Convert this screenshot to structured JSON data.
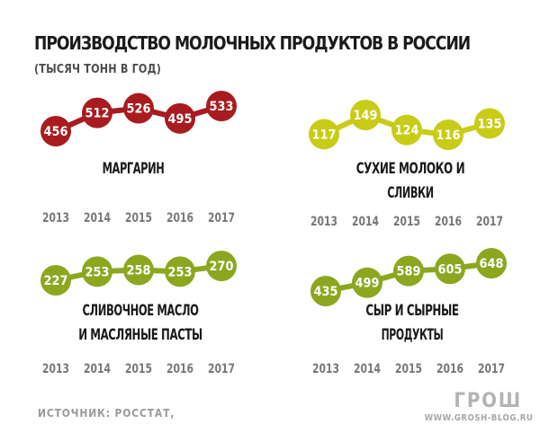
{
  "title": "ПРОИЗВОДСТВО МОЛОЧНЫХ ПРОДУКТОВ В РОССИИ",
  "subtitle": "(ТЫСЯЧ ТОНН В ГОД)",
  "source": "ИСТОЧНИК: РОССТАТ,",
  "brand": "ГРОШ",
  "site": "WWW.GROSH-BLOG.RU",
  "colors": {
    "margarine": "#a81b1f",
    "milk": "#c9cc16",
    "butter": "#8ca71f",
    "cheese": "#8ca71f",
    "year_text": "#777777",
    "title_text": "#1a1a1a"
  },
  "chart_data": [
    {
      "type": "line",
      "x": [
        "2013",
        "2014",
        "2015",
        "2016",
        "2017"
      ],
      "values": [
        456,
        512,
        526,
        495,
        533
      ],
      "value_labels": [
        "456",
        "512",
        "526",
        "495",
        "533"
      ],
      "label_lines": [
        "МАРГАРИН"
      ],
      "color": "#a81b1f"
    },
    {
      "type": "line",
      "x": [
        "2013",
        "2014",
        "2015",
        "2016",
        "2017"
      ],
      "values": [
        117,
        149,
        124,
        116,
        135
      ],
      "value_labels": [
        "117",
        "149",
        "124",
        "116",
        "135"
      ],
      "label_lines": [
        "СУХИЕ МОЛОКО И",
        "СЛИВКИ"
      ],
      "color": "#c9cc16"
    },
    {
      "type": "line",
      "x": [
        "2013",
        "2014",
        "2015",
        "2016",
        "2017"
      ],
      "values": [
        227,
        253,
        258,
        253,
        270
      ],
      "value_labels": [
        "227",
        "253",
        "258",
        "253",
        "270"
      ],
      "label_lines": [
        "СЛИВОЧНОЕ МАСЛО",
        "И МАСЛЯНЫЕ ПАСТЫ"
      ],
      "color": "#8ca71f"
    },
    {
      "type": "line",
      "x": [
        "2013",
        "2014",
        "2015",
        "2016",
        "2017"
      ],
      "values": [
        435,
        499,
        589,
        605,
        648
      ],
      "value_labels": [
        "435",
        "499",
        "589",
        "605",
        "648"
      ],
      "label_lines": [
        "СЫР И СЫРНЫЕ",
        "ПРОДУКТЫ"
      ],
      "color": "#8ca71f"
    }
  ]
}
